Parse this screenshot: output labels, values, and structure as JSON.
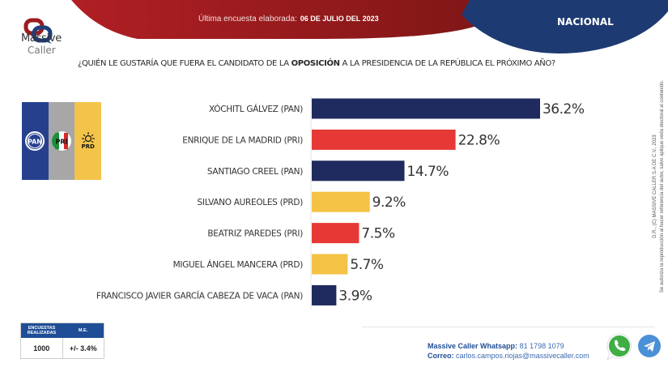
{
  "brand": {
    "line1": "Massive",
    "line2": "Caller"
  },
  "header": {
    "date_label": "Última encuesta elaborada:",
    "date_value": "06 DE JULIO DEL 2023",
    "scope": "NACIONAL"
  },
  "question": {
    "before": "¿QUIÉN LE GUSTARÍA QUE FUERA EL CANDIDATO DE LA",
    "bold": "OPOSICIÓN",
    "after": "A LA PRESIDENCIA DE LA REPÚBLICA EL PRÓXIMO AÑO?"
  },
  "party_logos": {
    "pan": "PAN",
    "pri": "PRI",
    "prd": "PRD"
  },
  "colors": {
    "pan": "#1f2a5e",
    "pri": "#e63935",
    "prd": "#f4c245",
    "header_red": "#a81e22",
    "header_blue": "#1e3a72"
  },
  "chart_data": {
    "type": "bar",
    "orientation": "horizontal",
    "title": "¿QUIÉN LE GUSTARÍA QUE FUERA EL CANDIDATO DE LA OPOSICIÓN A LA PRESIDENCIA DE LA REPÚBLICA EL PRÓXIMO AÑO?",
    "xlabel": "",
    "ylabel": "",
    "unit": "%",
    "xlim": [
      0,
      40
    ],
    "grid": false,
    "categories": [
      "XÓCHITL GÁLVEZ (PAN)",
      "ENRIQUE DE LA MADRID (PRI)",
      "SANTIAGO CREEL (PAN)",
      "SILVANO AUREOLES (PRD)",
      "BEATRIZ PAREDES (PRI)",
      "MIGUEL ÁNGEL MANCERA (PRD)",
      "FRANCISCO JAVIER GARCÍA CABEZA DE VACA (PAN)"
    ],
    "values": [
      36.2,
      22.8,
      14.7,
      9.2,
      7.5,
      5.7,
      3.9
    ],
    "value_labels": [
      "36.2%",
      "22.8%",
      "14.7%",
      "9.2%",
      "7.5%",
      "5.7%",
      "3.9%"
    ],
    "party": [
      "pan",
      "pri",
      "pan",
      "prd",
      "pri",
      "prd",
      "pan"
    ]
  },
  "side_note": {
    "line1": "D.R., (C) MASSIVE CALLER S.A DE C.V., 2023",
    "line2": "Se autoriza la reproducción al hacer referencia del autor, salvo aplique veda electoral al contenido."
  },
  "stats": {
    "col1_header": "ENCUESTAS REALIZADAS",
    "col2_header": "M.E.",
    "col1_value": "1000",
    "col2_value": "+/- 3.4%"
  },
  "contact": {
    "whatsapp_label": "Massive Caller Whatsapp:",
    "whatsapp_value": "81 1798 1079",
    "email_label": "Correo:",
    "email_value": "carlos.campos.riojas@massivecaller.com"
  }
}
